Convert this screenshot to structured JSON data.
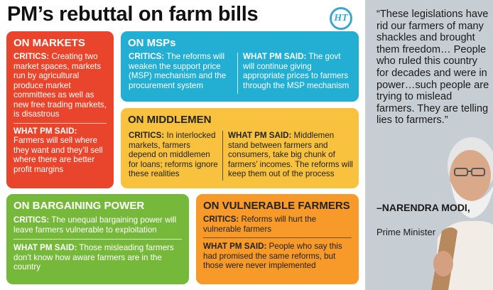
{
  "title": "PM’s rebuttal on farm bills",
  "logo_text": "HT",
  "markets": {
    "heading": "ON MARKETS",
    "critics_label": "CRITICS:",
    "critics_text": " Creating two market spaces, markets run by agricultural produce market committees as well as new free trading markets, is disastrous",
    "pm_label": "WHAT PM SAID:",
    "pm_text": " Farmers will sell where they want and they’ll sell where there are better profit margins"
  },
  "msps": {
    "heading": "ON MSPs",
    "critics_label": "CRITICS:",
    "critics_text": " The reforms will weaken the support price (MSP) mechanism and the procurement system",
    "pm_label": "WHAT PM SAID:",
    "pm_text": " The govt will continue giving appropriate prices to farmers through the MSP mechanism"
  },
  "middlemen": {
    "heading": "ON MIDDLEMEN",
    "critics_label": "CRITICS:",
    "critics_text": " In interlocked markets, farmers depend on middlemen for loans; reforms ignore these realities",
    "pm_label": "WHAT PM SAID:",
    "pm_text": " Middlemen stand between farmers and consumers, take big chunk of farmers’ incomes. The reforms will keep them out of the process"
  },
  "bargaining": {
    "heading": "ON BARGAINING POWER",
    "critics_label": "CRITICS:",
    "critics_text": " The unequal bargaining power will leave farmers vulnerable to exploitation",
    "pm_label": "WHAT PM SAID:",
    "pm_text": "  Those misleading farmers don’t know how aware farmers are in the country"
  },
  "vulnerable": {
    "heading": "ON VULNERABLE FARMERS",
    "critics_label": "CRITICS:",
    "critics_text": " Reforms will hurt the vulnerable farmers",
    "pm_label": "WHAT PM SAID:",
    "pm_text": " People who say this had promised the same reforms, but those were never implemented"
  },
  "quote": {
    "text": "“These legislations have rid our farmers of many shackles and brought them freedom… People who ruled this country for decades and were in power…such people are trying to mislead farmers. They are telling lies to farmers.”",
    "attribution_name": "–NARENDRA MODI,",
    "attribution_role": "Prime Minister"
  },
  "colors": {
    "markets": "#e9452c",
    "msps": "#23afd3",
    "middlemen": "#f8c23e",
    "bargaining": "#76b83a",
    "vulnerable": "#f79a2a",
    "quote_panel": "#c6cdd3"
  }
}
